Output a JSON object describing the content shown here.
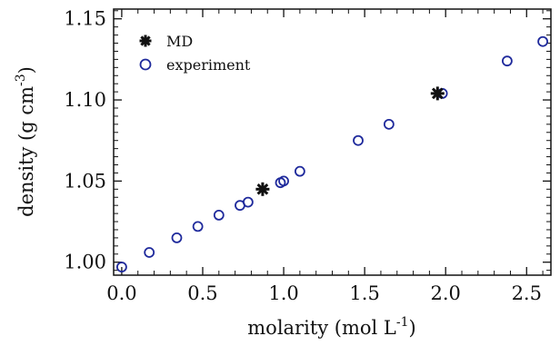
{
  "chart_data": {
    "type": "scatter",
    "xlabel": "molarity (mol L",
    "xlabel_sup": "-1",
    "xlabel_tail": ")",
    "ylabel": "density (g cm",
    "ylabel_sup": "-3",
    "ylabel_tail": ")",
    "xlim": [
      -0.05,
      2.65
    ],
    "ylim": [
      0.992,
      1.156
    ],
    "xticks": [
      0.0,
      0.5,
      1.0,
      1.5,
      2.0,
      2.5
    ],
    "xtick_labels": [
      "0.0",
      "0.5",
      "1.0",
      "1.5",
      "2.0",
      "2.5"
    ],
    "yticks": [
      1.0,
      1.05,
      1.1,
      1.15
    ],
    "ytick_labels": [
      "1.00",
      "1.05",
      "1.10",
      "1.15"
    ],
    "legend_position": "top-left",
    "grid": false,
    "series": [
      {
        "name": "MD",
        "marker": "asterisk",
        "color": "#111111",
        "x": [
          0.87,
          1.95
        ],
        "y": [
          1.045,
          1.104
        ]
      },
      {
        "name": "experiment",
        "marker": "open-circle",
        "color": "#1f2a9c",
        "x": [
          0.0,
          0.17,
          0.34,
          0.47,
          0.6,
          0.73,
          0.78,
          0.98,
          1.0,
          1.1,
          1.46,
          1.65,
          1.98,
          2.38,
          2.6
        ],
        "y": [
          0.997,
          1.006,
          1.015,
          1.022,
          1.029,
          1.035,
          1.037,
          1.049,
          1.05,
          1.056,
          1.075,
          1.085,
          1.104,
          1.124,
          1.136
        ]
      }
    ]
  }
}
